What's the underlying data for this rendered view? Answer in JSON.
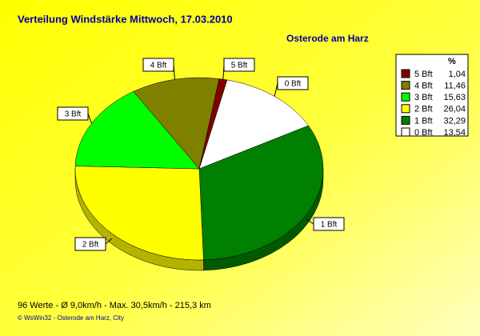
{
  "chart_data": {
    "type": "pie",
    "title": "Verteilung Windstärke  Mittwoch, 17.03.2010",
    "subtitle": "Osterode am Harz",
    "legend_title": "%",
    "categories": [
      "0 Bft",
      "1 Bft",
      "2 Bft",
      "3 Bft",
      "4 Bft",
      "5 Bft"
    ],
    "values": [
      13.54,
      32.29,
      26.04,
      15.63,
      11.46,
      1.04
    ],
    "value_labels": [
      "13,54",
      "32,29",
      "26,04",
      "15,63",
      "11,46",
      "1,04"
    ],
    "colors": [
      "#ffffff",
      "#008000",
      "#ffff00",
      "#00ff00",
      "#808000",
      "#800000"
    ],
    "footer": "96 Werte   -   Ø 9,0km/h  -  Max. 30,5km/h   -   215,3 km",
    "credit": "© WsWin32  -  Osterode am Harz, City"
  }
}
